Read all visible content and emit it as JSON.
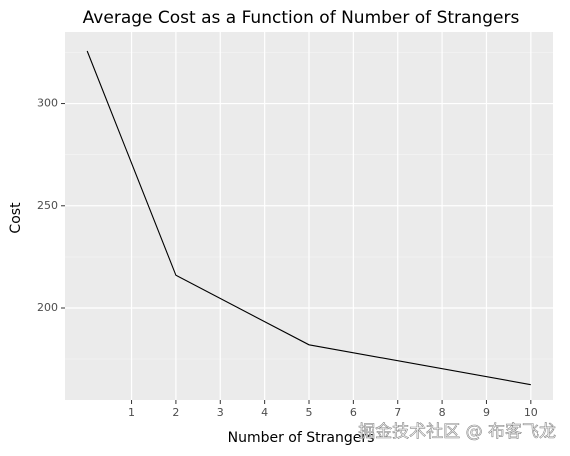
{
  "chart_data": {
    "type": "line",
    "title": "Average Cost as a Function of Number of Strangers",
    "x_label": "Number of Strangers",
    "y_label": "Cost",
    "x": [
      0,
      2,
      5,
      10
    ],
    "values": [
      325.7,
      216,
      182,
      162.5
    ],
    "color": "#000000",
    "xlim": [
      -0.5,
      10.5
    ],
    "xticks": [
      1,
      2,
      3,
      4,
      5,
      6,
      7,
      8,
      9,
      10
    ],
    "ylim": [
      155,
      335
    ],
    "yticks": [
      200,
      250,
      300
    ],
    "y_minor_grid": [
      175,
      225,
      275,
      325
    ],
    "grid": true,
    "watermark": "掘金技术社区 @ 布客飞龙"
  }
}
